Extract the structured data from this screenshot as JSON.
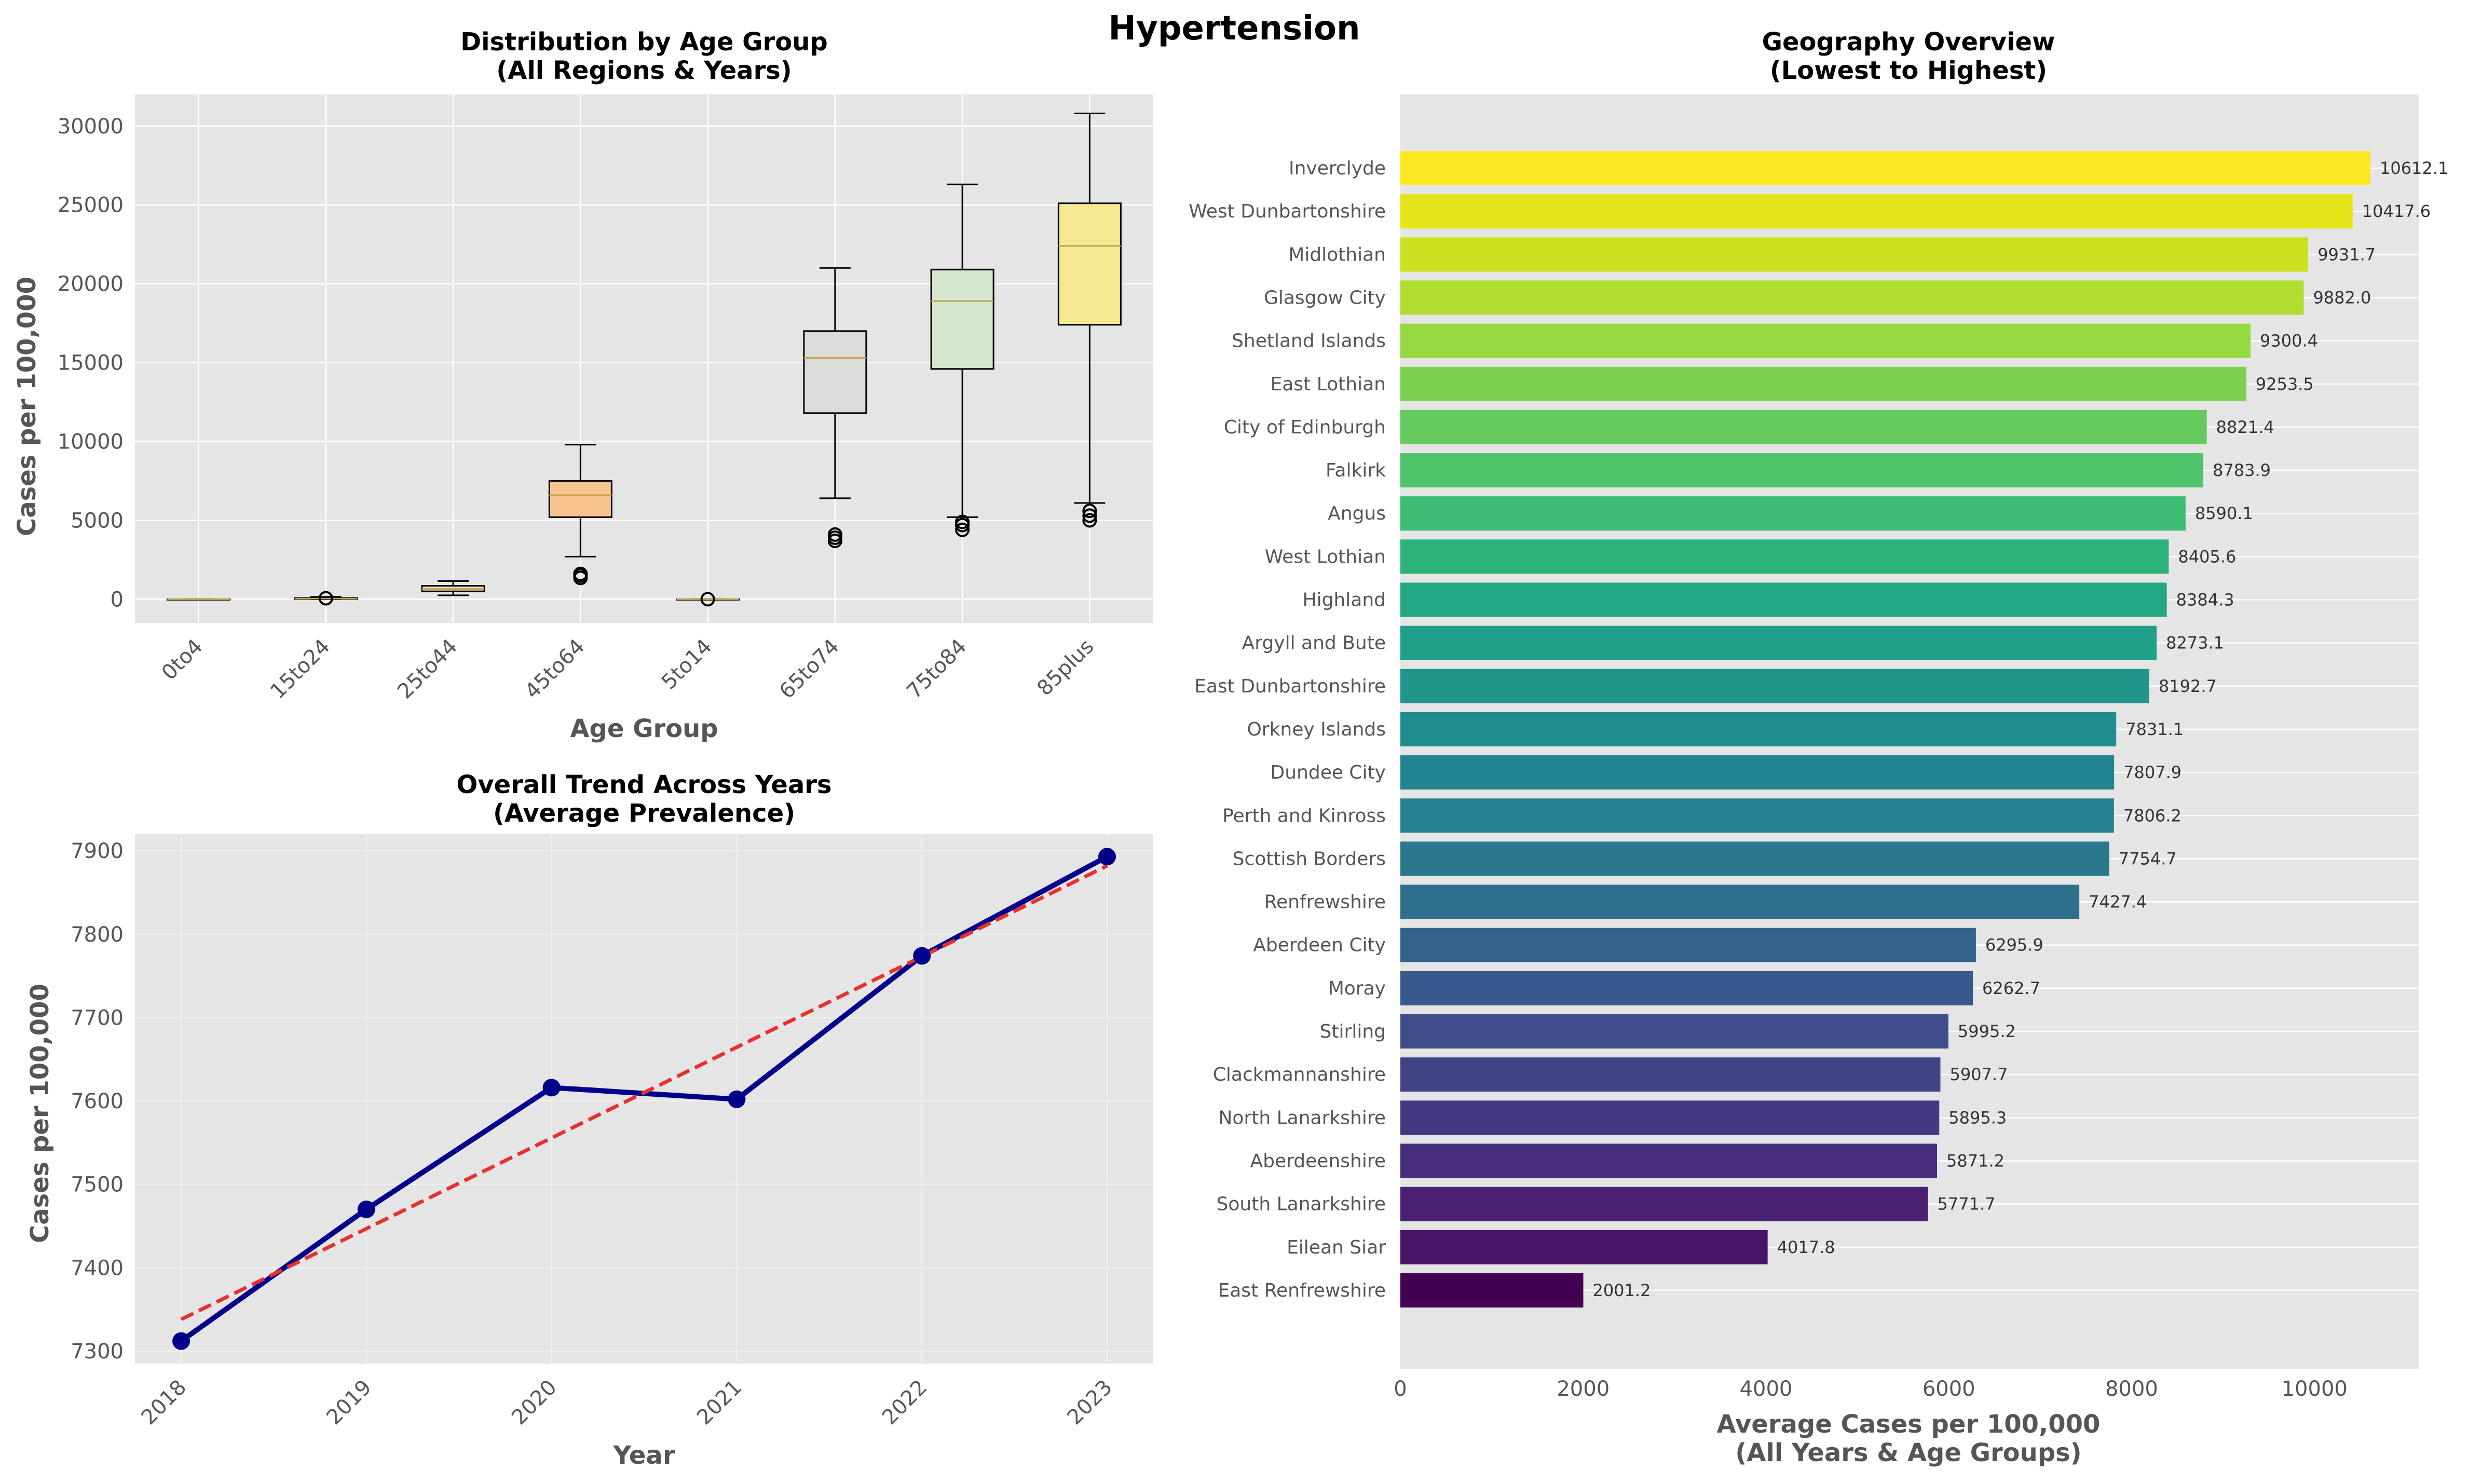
{
  "suptitle": "Hypertension",
  "colors": {
    "panel_bg": "#e5e5e5",
    "grid": "#ffffff",
    "median": "#c8a24a",
    "trend_line": "#00008b",
    "fit_line": "#e8302c"
  },
  "chart_data": [
    {
      "type": "box",
      "title_line1": "Distribution by Age Group",
      "title_line2": "(All Regions & Years)",
      "xlabel": "Age Group",
      "ylabel": "Cases per 100,000",
      "ylim": [
        -1500,
        32000
      ],
      "yticks": [
        0,
        5000,
        10000,
        15000,
        20000,
        25000,
        30000
      ],
      "categories": [
        "0to4",
        "15to24",
        "25to44",
        "45to64",
        "5to14",
        "65to74",
        "75to84",
        "85plus"
      ],
      "boxes": [
        {
          "min": 0,
          "q1": 0,
          "median": 0,
          "q3": 0,
          "max": 0,
          "outliers": [],
          "color": "#fde0c5"
        },
        {
          "min": 0,
          "q1": 10,
          "median": 40,
          "q3": 80,
          "max": 150,
          "outliers": [
            60
          ],
          "color": "#fde0c5"
        },
        {
          "min": 250,
          "q1": 500,
          "median": 650,
          "q3": 850,
          "max": 1150,
          "outliers": [],
          "color": "#fde0c5"
        },
        {
          "min": 2700,
          "q1": 5200,
          "median": 6600,
          "q3": 7500,
          "max": 9800,
          "outliers": [
            1350,
            1500,
            1600
          ],
          "color": "#f7c48f"
        },
        {
          "min": 0,
          "q1": 0,
          "median": 0,
          "q3": 0,
          "max": 0,
          "outliers": [
            0
          ],
          "color": "#fde0c5"
        },
        {
          "min": 6400,
          "q1": 11800,
          "median": 15300,
          "q3": 17000,
          "max": 21000,
          "outliers": [
            3700,
            3900,
            4100
          ],
          "color": "#dcdcdc"
        },
        {
          "min": 5200,
          "q1": 14600,
          "median": 18900,
          "q3": 20900,
          "max": 26300,
          "outliers": [
            4400,
            4700,
            4900
          ],
          "color": "#d3e8cf"
        },
        {
          "min": 6100,
          "q1": 17400,
          "median": 22400,
          "q3": 25100,
          "max": 30800,
          "outliers": [
            5000,
            5300,
            5600
          ],
          "color": "#f6e793"
        }
      ]
    },
    {
      "type": "line",
      "title_line1": "Overall Trend Across Years",
      "title_line2": "(Average Prevalence)",
      "xlabel": "Year",
      "ylabel": "Cases per 100,000",
      "ylim": [
        7285,
        7920
      ],
      "yticks": [
        7300,
        7400,
        7500,
        7600,
        7700,
        7800,
        7900
      ],
      "x": [
        "2018",
        "2019",
        "2020",
        "2021",
        "2022",
        "2023"
      ],
      "series": [
        {
          "values": [
            7312,
            7470,
            7616,
            7602,
            7774,
            7893
          ]
        }
      ],
      "trendline": {
        "start": 7338,
        "end": 7882
      }
    },
    {
      "type": "bar",
      "orientation": "horizontal",
      "title_line1": "Geography Overview",
      "title_line2": "(Lowest to Highest)",
      "xlabel_line1": "Average Cases per 100,000",
      "xlabel_line2": "(All Years & Age Groups)",
      "xlim": [
        0,
        11140
      ],
      "xticks": [
        0,
        2000,
        4000,
        6000,
        8000,
        10000
      ],
      "categories": [
        "Inverclyde",
        "West Dunbartonshire",
        "Midlothian",
        "Glasgow City",
        "Shetland Islands",
        "East Lothian",
        "City of Edinburgh",
        "Falkirk",
        "Angus",
        "West Lothian",
        "Highland",
        "Argyll and Bute",
        "East Dunbartonshire",
        "Orkney Islands",
        "Dundee City",
        "Perth and Kinross",
        "Scottish Borders",
        "Renfrewshire",
        "Aberdeen City",
        "Moray",
        "Stirling",
        "Clackmannanshire",
        "North Lanarkshire",
        "Aberdeenshire",
        "South Lanarkshire",
        "Eilean Siar",
        "East Renfrewshire"
      ],
      "values": [
        10612.1,
        10417.6,
        9931.7,
        9882.0,
        9300.4,
        9253.5,
        8821.4,
        8783.9,
        8590.1,
        8405.6,
        8384.3,
        8273.1,
        8192.7,
        7831.1,
        7807.9,
        7806.2,
        7754.7,
        7427.4,
        6295.9,
        6262.7,
        5995.2,
        5907.7,
        5895.3,
        5871.2,
        5771.7,
        4017.8,
        2001.2
      ],
      "value_labels": [
        "10612.1",
        "10417.6",
        "9931.7",
        "9882.0",
        "9300.4",
        "9253.5",
        "8821.4",
        "8783.9",
        "8590.1",
        "8405.6",
        "8384.3",
        "8273.1",
        "8192.7",
        "7831.1",
        "7807.9",
        "7806.2",
        "7754.7",
        "7427.4",
        "6295.9",
        "6262.7",
        "5995.2",
        "5907.7",
        "5895.3",
        "5871.2",
        "5771.7",
        "4017.8",
        "2001.2"
      ],
      "colors": [
        "#fde725",
        "#e4e419",
        "#cae11f",
        "#b0dd2f",
        "#95d840",
        "#7cd250",
        "#65cb5e",
        "#50c46a",
        "#3dbc74",
        "#2db27d",
        "#22a884",
        "#1f9f88",
        "#1f958b",
        "#218c8d",
        "#23838e",
        "#26828e",
        "#2a788e",
        "#2e6f8e",
        "#33638d",
        "#38598c",
        "#3d4e8a",
        "#414487",
        "#453882",
        "#472d7b",
        "#482173",
        "#481467",
        "#440154"
      ]
    }
  ]
}
